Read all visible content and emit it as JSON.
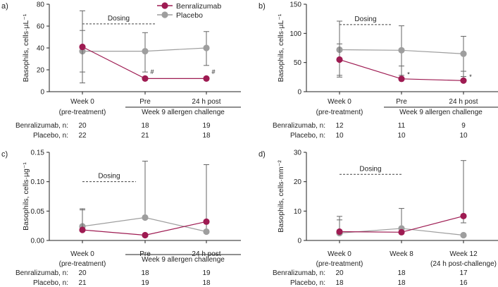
{
  "legend": {
    "items": [
      {
        "name": "Benralizumab",
        "color": "#9e1b52"
      },
      {
        "name": "Placebo",
        "color": "#9e9e9e"
      }
    ]
  },
  "chart_data": [
    {
      "type": "line",
      "panel_label": "a)",
      "ylabel": "Basophils, cells·µL⁻¹",
      "ylim": [
        0,
        80
      ],
      "yticks": [
        "0",
        "20",
        "40",
        "60",
        "80"
      ],
      "ytick_values": [
        0,
        20,
        40,
        60,
        80
      ],
      "categories": [
        "Week 0",
        "Pre",
        "24 h post"
      ],
      "category_sublabels": [
        "(pre-treatment)",
        "",
        ""
      ],
      "group_label": "Week 9 allergen challenge",
      "dosing_label": "Dosing",
      "dosing_level": 62,
      "series": [
        {
          "name": "Benralizumab",
          "color": "#9e1b52",
          "values": [
            41,
            12,
            12
          ],
          "err_low": [
            18,
            12,
            12
          ],
          "err_high": [
            74,
            12,
            12
          ]
        },
        {
          "name": "Placebo",
          "color": "#9e9e9e",
          "values": [
            37,
            37,
            40
          ],
          "err_low": [
            8,
            18,
            24
          ],
          "err_high": [
            56,
            54,
            55
          ]
        }
      ],
      "annotations": [
        {
          "text": "#",
          "category_index": 1,
          "value": 16
        },
        {
          "text": "#",
          "category_index": 2,
          "value": 16
        }
      ],
      "n_table": {
        "rows": [
          {
            "label": "Benralizumab, n:",
            "values": [
              "20",
              "18",
              "19"
            ]
          },
          {
            "label": "Placebo, n:",
            "values": [
              "22",
              "21",
              "18"
            ]
          }
        ]
      }
    },
    {
      "type": "line",
      "panel_label": "b)",
      "ylabel": "Basophils, cells·µL⁻¹",
      "ylim": [
        0,
        150
      ],
      "yticks": [
        "0",
        "50",
        "100",
        "150"
      ],
      "ytick_values": [
        0,
        50,
        100,
        150
      ],
      "categories": [
        "Week 0",
        "Pre",
        "24 h post"
      ],
      "category_sublabels": [
        "(pre-treatment)",
        "",
        ""
      ],
      "group_label": "Week 9 allergen challenge",
      "dosing_label": "Dosing",
      "dosing_level": 115,
      "series": [
        {
          "name": "Benralizumab",
          "color": "#9e1b52",
          "values": [
            55,
            22,
            19
          ],
          "err_low": [
            25,
            22,
            19
          ],
          "err_high": [
            82,
            44,
            35
          ]
        },
        {
          "name": "Placebo",
          "color": "#9e9e9e",
          "values": [
            72,
            71,
            65
          ],
          "err_low": [
            28,
            28,
            26
          ],
          "err_high": [
            121,
            113,
            95
          ]
        }
      ],
      "annotations": [
        {
          "text": "*",
          "category_index": 1,
          "value": 26
        },
        {
          "text": "*",
          "category_index": 2,
          "value": 22
        }
      ],
      "n_table": {
        "rows": [
          {
            "label": "Benralizumab, n:",
            "values": [
              "12",
              "11",
              "9"
            ]
          },
          {
            "label": "Placebo, n:",
            "values": [
              "10",
              "10",
              "10"
            ]
          }
        ]
      }
    },
    {
      "type": "line",
      "panel_label": "c)",
      "ylabel": "Basophils, cells·µg⁻¹",
      "ylim": [
        0,
        0.15
      ],
      "yticks": [
        "0.00",
        "0.05",
        "0.10",
        "0.15"
      ],
      "ytick_values": [
        0,
        0.05,
        0.1,
        0.15
      ],
      "categories": [
        "Week 0",
        "Pre",
        "24 h post"
      ],
      "category_sublabels": [
        "(pre-treatment)",
        "",
        ""
      ],
      "group_label": "Week 9 allergen challenge",
      "dosing_label": "Dosing",
      "dosing_level": 0.1,
      "series": [
        {
          "name": "Benralizumab",
          "color": "#9e1b52",
          "values": [
            0.018,
            0.009,
            0.032
          ],
          "err_low": [
            0.018,
            0.009,
            0.032
          ],
          "err_high": [
            0.052,
            0.009,
            0.032
          ]
        },
        {
          "name": "Placebo",
          "color": "#9e9e9e",
          "values": [
            0.024,
            0.039,
            0.015
          ],
          "err_low": [
            0.024,
            0.039,
            0.015
          ],
          "err_high": [
            0.054,
            0.135,
            0.129
          ]
        }
      ],
      "annotations": [],
      "n_table": {
        "rows": [
          {
            "label": "Benralizumab, n:",
            "values": [
              "20",
              "18",
              "19"
            ]
          },
          {
            "label": "Placebo, n:",
            "values": [
              "21",
              "19",
              "18"
            ]
          }
        ]
      }
    },
    {
      "type": "line",
      "panel_label": "d)",
      "ylabel": "Basophils, cells·mm⁻²",
      "ylim": [
        0,
        30
      ],
      "yticks": [
        "0",
        "10",
        "20",
        "30"
      ],
      "ytick_values": [
        0,
        10,
        20,
        30
      ],
      "categories": [
        "Week 0",
        "Week 8",
        "Week 12"
      ],
      "category_sublabels": [
        "(pre-treatment)",
        "",
        "(24 h post-challenge)"
      ],
      "group_label": "",
      "dosing_label": "Dosing",
      "dosing_level": 22.5,
      "series": [
        {
          "name": "Benralizumab",
          "color": "#9e1b52",
          "values": [
            3,
            2.8,
            8.3
          ],
          "err_low": [
            3,
            2.8,
            6
          ],
          "err_high": [
            7,
            2.8,
            27.2
          ]
        },
        {
          "name": "Placebo",
          "color": "#9e9e9e",
          "values": [
            2.5,
            4.1,
            1.8
          ],
          "err_low": [
            2.5,
            4.1,
            1.8
          ],
          "err_high": [
            8.2,
            10.9,
            1.8
          ]
        }
      ],
      "annotations": [],
      "n_table": {
        "rows": [
          {
            "label": "Benralizumab, n:",
            "values": [
              "20",
              "18",
              "17"
            ]
          },
          {
            "label": "Placebo, n:",
            "values": [
              "18",
              "18",
              "16"
            ]
          }
        ]
      }
    }
  ]
}
